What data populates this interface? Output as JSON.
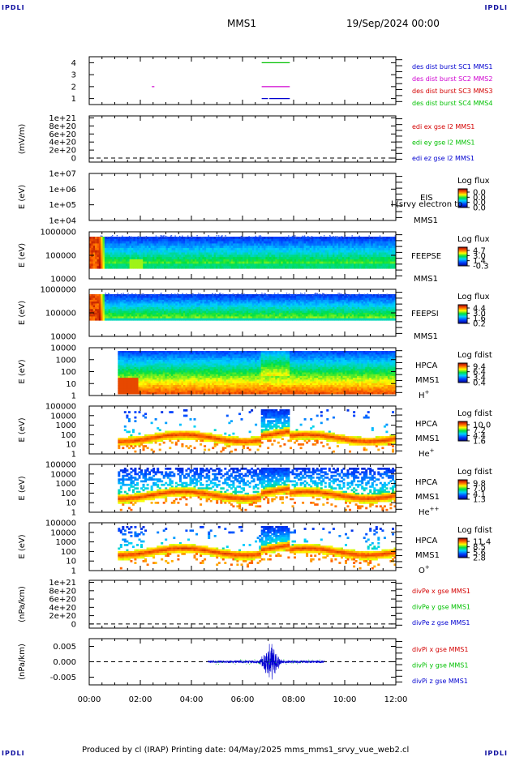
{
  "corner_label": "IPDLI",
  "header": {
    "spacecraft": "MMS1",
    "date": "19/Sep/2024 00:00"
  },
  "footer": "Produced by cl (IRAP)   Printing date: 04/May/2025   mms_mms1_srvy_vue_web2.cl",
  "colors": {
    "red": "#d40000",
    "magenta": "#d000d0",
    "green": "#00c000",
    "blue": "#0000d0",
    "darkblue": "#0a18b8"
  },
  "chart_data": {
    "type": "multi-panel time series / spectrogram",
    "time_axis": {
      "ticks": [
        "00:00",
        "02:00",
        "04:00",
        "06:00",
        "08:00",
        "10:00",
        "12:00"
      ],
      "range_hours": [
        0,
        12
      ]
    },
    "panels": [
      {
        "id": "des-dist-burst",
        "type": "line",
        "ylabel": "",
        "yticks": [
          "1",
          "2",
          "3",
          "4"
        ],
        "ylim": [
          0.5,
          4.5
        ],
        "legend": [
          {
            "label": "des dist burst SC1 MMS1",
            "color": "blue"
          },
          {
            "label": "des dist burst SC2 MMS2",
            "color": "magenta"
          },
          {
            "label": "des dist burst SC3 MMS3",
            "color": "red"
          },
          {
            "label": "des dist burst SC4 MMS4",
            "color": "green"
          }
        ],
        "segments": [
          {
            "color": "green",
            "y": 4,
            "t": [
              6.75,
              7.85
            ]
          },
          {
            "color": "magenta",
            "y": 2,
            "t": [
              2.45,
              2.55
            ]
          },
          {
            "color": "magenta",
            "y": 2,
            "t": [
              6.75,
              7.85
            ]
          },
          {
            "color": "blue",
            "y": 1,
            "t": [
              6.75,
              7.0
            ]
          },
          {
            "color": "blue",
            "y": 1,
            "t": [
              7.05,
              7.85
            ]
          }
        ]
      },
      {
        "id": "edi-e",
        "type": "line",
        "ylabel": "(mV/m)",
        "yticks": [
          "0",
          "2e+20",
          "4e+20",
          "6e+20",
          "8e+20",
          "1e+21"
        ],
        "ylim": [
          -1e+20,
          1.05e+21
        ],
        "legend": [
          {
            "label": "edi ex gse l2 MMS1",
            "color": "red"
          },
          {
            "label": "edi ey gse l2 MMS1",
            "color": "green"
          },
          {
            "label": "edi ez gse l2 MMS1",
            "color": "blue"
          }
        ]
      },
      {
        "id": "eis",
        "type": "heatmap",
        "ylabel": "E (eV)",
        "yticks": [
          "1e+04",
          "1e+05",
          "1e+06",
          "1e+07"
        ],
        "instrument": [
          "EIS",
          "MMS1"
        ],
        "overlay_text": "l (srvy electron to",
        "colorbar": {
          "title": "Log flux",
          "labels": [
            "0.0",
            "0.0",
            "0.0",
            "0.0"
          ]
        }
      },
      {
        "id": "feeps-e",
        "type": "heatmap",
        "ylabel": "E (eV)",
        "yticks": [
          "10000",
          "100000",
          "1000000"
        ],
        "instrument": [
          "FEEPSE",
          "MMS1"
        ],
        "colorbar": {
          "title": "Log flux",
          "labels": [
            "4.7",
            "3.0",
            "1.4",
            "-0.3"
          ]
        }
      },
      {
        "id": "feeps-i",
        "type": "heatmap",
        "ylabel": "E (eV)",
        "yticks": [
          "10000",
          "100000",
          "1000000"
        ],
        "instrument": [
          "FEEPSI",
          "MMS1"
        ],
        "colorbar": {
          "title": "Log flux",
          "labels": [
            "4.4",
            "3.0",
            "1.6",
            "0.2"
          ]
        }
      },
      {
        "id": "hpca-h",
        "type": "heatmap",
        "ylabel": "E (eV)",
        "yticks": [
          "1",
          "10",
          "100",
          "1000",
          "10000"
        ],
        "instrument": [
          "HPCA",
          "MMS1"
        ],
        "species": "H",
        "charge": "+",
        "colorbar": {
          "title": "Log fdist",
          "labels": [
            "9.4",
            "6.4",
            "3.4",
            "0.4"
          ]
        }
      },
      {
        "id": "hpca-he",
        "type": "heatmap",
        "ylabel": "E (eV)",
        "yticks": [
          "1",
          "10",
          "100",
          "1000",
          "10000",
          "100000"
        ],
        "instrument": [
          "HPCA",
          "MMS1"
        ],
        "species": "He",
        "charge": "+",
        "colorbar": {
          "title": "Log fdist",
          "labels": [
            "10.0",
            "7.2",
            "4.4",
            "1.6"
          ]
        }
      },
      {
        "id": "hpca-he2",
        "type": "heatmap",
        "ylabel": "E (eV)",
        "yticks": [
          "1",
          "10",
          "100",
          "1000",
          "10000",
          "100000"
        ],
        "instrument": [
          "HPCA",
          "MMS1"
        ],
        "species": "He",
        "charge": "++",
        "colorbar": {
          "title": "Log fdist",
          "labels": [
            "9.8",
            "7.0",
            "4.1",
            "1.3"
          ]
        }
      },
      {
        "id": "hpca-o",
        "type": "heatmap",
        "ylabel": "E (eV)",
        "yticks": [
          "1",
          "10",
          "100",
          "1000",
          "10000",
          "100000"
        ],
        "instrument": [
          "HPCA",
          "MMS1"
        ],
        "species": "O",
        "charge": "+",
        "colorbar": {
          "title": "Log fdist",
          "labels": [
            "11.4",
            "8.5",
            "5.6",
            "2.8"
          ]
        }
      },
      {
        "id": "divpe",
        "type": "line",
        "ylabel": "(nPa/km)",
        "yticks": [
          "0",
          "2e+20",
          "4e+20",
          "6e+20",
          "8e+20",
          "1e+21"
        ],
        "ylim": [
          -1e+20,
          1.05e+21
        ],
        "legend": [
          {
            "label": "divPe x gse MMS1",
            "color": "red"
          },
          {
            "label": "divPe y gse MMS1",
            "color": "green"
          },
          {
            "label": "divPe z gse MMS1",
            "color": "blue"
          }
        ]
      },
      {
        "id": "divpi",
        "type": "line",
        "ylabel": "(nPa/km)",
        "yticks": [
          "-0.005",
          "0.000",
          "0.005"
        ],
        "ylim": [
          -0.0075,
          0.0075
        ],
        "legend": [
          {
            "label": "divPi x gse MMS1",
            "color": "red"
          },
          {
            "label": "divPi y gse MMS1",
            "color": "green"
          },
          {
            "label": "divPi z gse MMS1",
            "color": "blue"
          }
        ],
        "trace": {
          "t_range": [
            4.65,
            9.2
          ],
          "baseline": 0.0,
          "noise": 0.0004,
          "burst": {
            "t_center": 7.1,
            "t_half_width": 0.45,
            "amplitude": 0.0065
          }
        }
      }
    ]
  }
}
